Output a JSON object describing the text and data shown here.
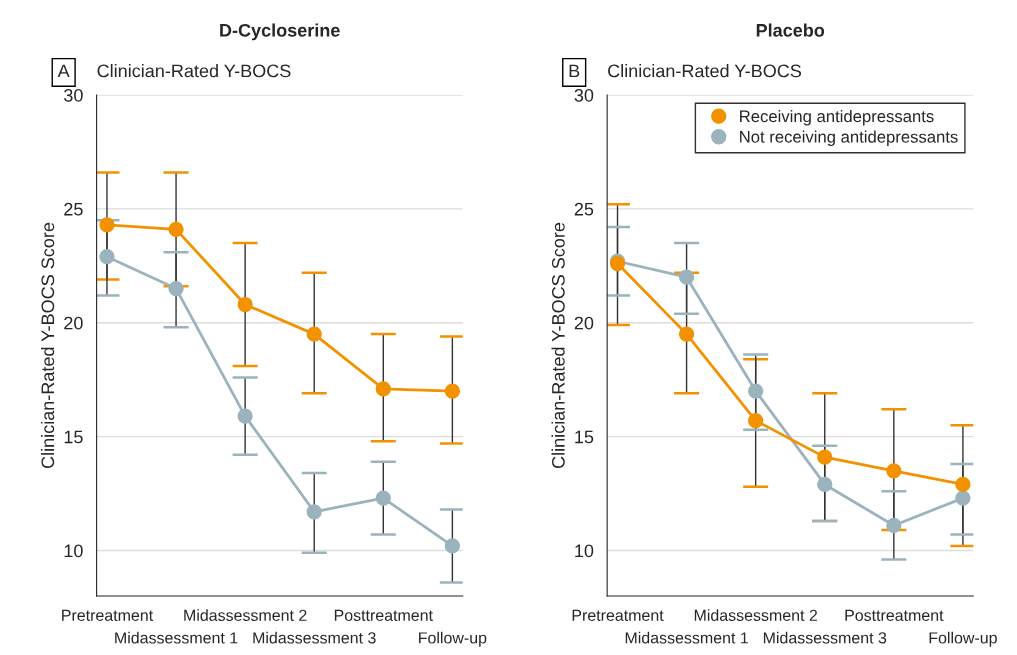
{
  "chart_data": [
    {
      "type": "line",
      "title": "D-Cycloserine",
      "subtitle": "Clinician-Rated Y-BOCS",
      "annotations": [
        "A"
      ],
      "ylabel": "Clinician-Rated Y-BOCS Score",
      "categories": [
        "Pretreatment",
        "Midassessment 1",
        "Midassessment 2",
        "Midassessment 3",
        "Posttreatment",
        "Follow-up"
      ],
      "ylim": [
        8,
        30
      ],
      "yticks": [
        10,
        15,
        20,
        25,
        30
      ],
      "grid": "y",
      "marker": "circle",
      "legend": false,
      "series": [
        {
          "color": "#f39200",
          "values": [
            24.3,
            24.1,
            20.8,
            19.5,
            17.1,
            17.0
          ],
          "errors": [
            [
              21.9,
              26.6
            ],
            2.5,
            [
              18.1,
              23.5
            ],
            [
              16.9,
              22.2
            ],
            [
              14.8,
              19.5
            ],
            [
              14.7,
              19.4
            ]
          ]
        },
        {
          "color": "#9bb3bc",
          "values": [
            22.9,
            21.5,
            15.9,
            11.7,
            12.3,
            10.2
          ],
          "errors": [
            [
              21.2,
              24.5
            ],
            [
              19.8,
              23.1
            ],
            [
              14.2,
              17.6
            ],
            [
              9.9,
              13.4
            ],
            [
              10.7,
              13.9
            ],
            [
              8.6,
              11.8
            ]
          ]
        }
      ]
    },
    {
      "type": "line",
      "title": "Placebo",
      "subtitle": "Clinician-Rated Y-BOCS",
      "annotations": [
        "B"
      ],
      "ylabel": "Clinician-Rated Y-BOCS Score",
      "categories": [
        "Pretreatment",
        "Midassessment 1",
        "Midassessment 2",
        "Midassessment 3",
        "Posttreatment",
        "Follow-up"
      ],
      "ylim": [
        8,
        30
      ],
      "yticks": [
        10,
        15,
        20,
        25,
        30
      ],
      "grid": "y",
      "marker": "circle",
      "legend": "top right",
      "series": [
        {
          "name": "Receiving antidepressants",
          "color": "#f39200",
          "values": [
            22.6,
            19.5,
            15.7,
            14.1,
            13.5,
            12.9
          ],
          "errors": [
            [
              19.9,
              25.2
            ],
            [
              16.9,
              22.2
            ],
            [
              12.8,
              18.4
            ],
            [
              11.3,
              16.9
            ],
            [
              10.9,
              16.2
            ],
            [
              10.2,
              15.5
            ]
          ]
        },
        {
          "name": "Not receiving antidepressants",
          "color": "#9bb3bc",
          "values": [
            22.7,
            22.0,
            17.0,
            12.9,
            11.1,
            12.3
          ],
          "errors": [
            [
              21.2,
              24.2
            ],
            [
              20.4,
              23.5
            ],
            [
              15.3,
              18.6
            ],
            [
              11.3,
              14.6
            ],
            [
              9.6,
              12.6
            ],
            [
              10.7,
              13.8
            ]
          ]
        }
      ]
    }
  ]
}
